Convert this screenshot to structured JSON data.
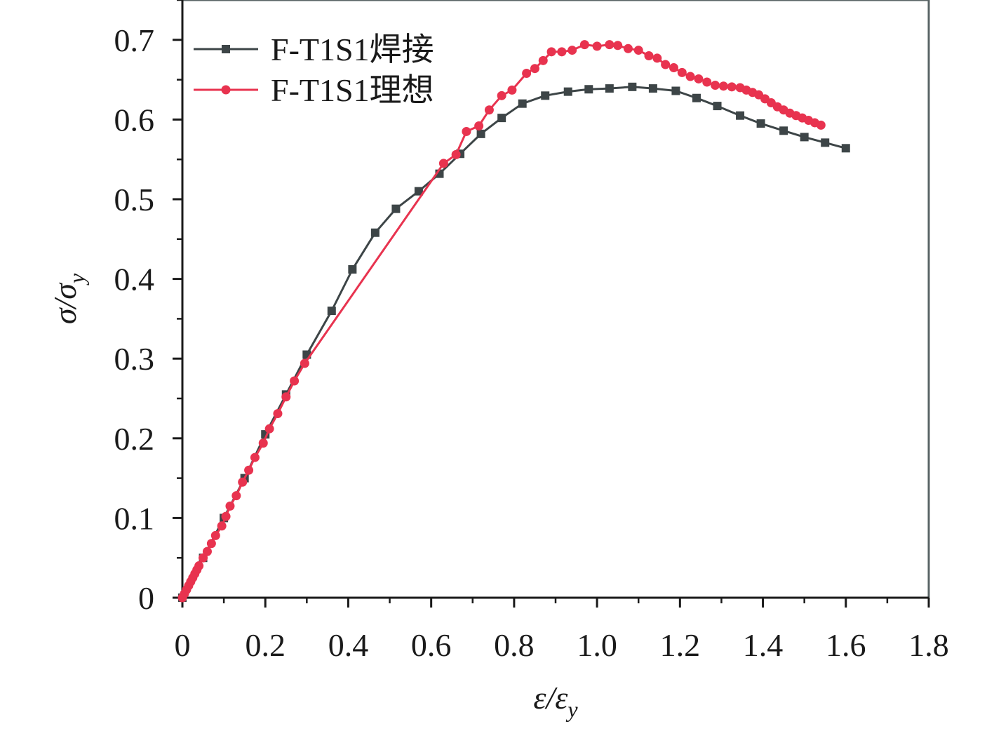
{
  "chart_data": {
    "type": "line",
    "title": "",
    "xlabel": {
      "base": "ε/ε",
      "sub": "y"
    },
    "ylabel": {
      "base": "σ/σ",
      "sub": "y"
    },
    "xlim": [
      0,
      1.8
    ],
    "ylim": [
      0,
      0.75
    ],
    "x_ticks": [
      0,
      0.2,
      0.4,
      0.6,
      0.8,
      1.0,
      1.2,
      1.4,
      1.6,
      1.8
    ],
    "x_tick_labels": [
      "0",
      "0.2",
      "0.4",
      "0.6",
      "0.8",
      "1.0",
      "1.2",
      "1.4",
      "1.6",
      "1.8"
    ],
    "y_ticks": [
      0,
      0.1,
      0.2,
      0.3,
      0.4,
      0.5,
      0.6,
      0.7
    ],
    "y_tick_labels": [
      "0",
      "0.1",
      "0.2",
      "0.3",
      "0.4",
      "0.5",
      "0.6",
      "0.7"
    ],
    "legend_position": "top-left",
    "grid": false,
    "series": [
      {
        "name": "F-T1S1焊接",
        "color": "#3d4547",
        "marker": "square",
        "x": [
          0,
          0.05,
          0.1,
          0.15,
          0.2,
          0.25,
          0.3,
          0.36,
          0.41,
          0.465,
          0.515,
          0.57,
          0.62,
          0.67,
          0.72,
          0.77,
          0.82,
          0.875,
          0.93,
          0.98,
          1.03,
          1.085,
          1.135,
          1.19,
          1.24,
          1.29,
          1.345,
          1.395,
          1.45,
          1.5,
          1.55,
          1.6
        ],
        "y": [
          0,
          0.05,
          0.1,
          0.15,
          0.205,
          0.255,
          0.305,
          0.36,
          0.412,
          0.458,
          0.488,
          0.51,
          0.532,
          0.557,
          0.582,
          0.602,
          0.62,
          0.63,
          0.635,
          0.638,
          0.639,
          0.641,
          0.639,
          0.636,
          0.627,
          0.617,
          0.605,
          0.595,
          0.586,
          0.578,
          0.571,
          0.564
        ]
      },
      {
        "name": "F-T1S1理想",
        "color": "#e8334f",
        "marker": "circle",
        "x": [
          0,
          0.005,
          0.01,
          0.015,
          0.02,
          0.025,
          0.03,
          0.035,
          0.04,
          0.05,
          0.06,
          0.07,
          0.08,
          0.095,
          0.105,
          0.115,
          0.13,
          0.145,
          0.16,
          0.175,
          0.195,
          0.21,
          0.23,
          0.25,
          0.27,
          0.295,
          0.63,
          0.66,
          0.685,
          0.715,
          0.74,
          0.77,
          0.795,
          0.83,
          0.85,
          0.87,
          0.89,
          0.915,
          0.94,
          0.97,
          1.0,
          1.03,
          1.05,
          1.075,
          1.1,
          1.125,
          1.145,
          1.165,
          1.185,
          1.205,
          1.225,
          1.245,
          1.265,
          1.285,
          1.305,
          1.325,
          1.345,
          1.36,
          1.375,
          1.39,
          1.405,
          1.42,
          1.435,
          1.45,
          1.465,
          1.48,
          1.495,
          1.51,
          1.525,
          1.54
        ],
        "y": [
          0,
          0.005,
          0.01,
          0.015,
          0.02,
          0.025,
          0.03,
          0.035,
          0.04,
          0.05,
          0.058,
          0.068,
          0.078,
          0.09,
          0.102,
          0.115,
          0.128,
          0.145,
          0.16,
          0.176,
          0.194,
          0.212,
          0.231,
          0.252,
          0.272,
          0.294,
          0.545,
          0.556,
          0.585,
          0.592,
          0.612,
          0.63,
          0.637,
          0.658,
          0.664,
          0.674,
          0.685,
          0.685,
          0.687,
          0.694,
          0.692,
          0.694,
          0.693,
          0.689,
          0.687,
          0.68,
          0.677,
          0.669,
          0.665,
          0.659,
          0.654,
          0.651,
          0.647,
          0.643,
          0.642,
          0.641,
          0.64,
          0.637,
          0.634,
          0.631,
          0.626,
          0.621,
          0.616,
          0.612,
          0.608,
          0.605,
          0.602,
          0.599,
          0.596,
          0.593
        ]
      }
    ]
  }
}
